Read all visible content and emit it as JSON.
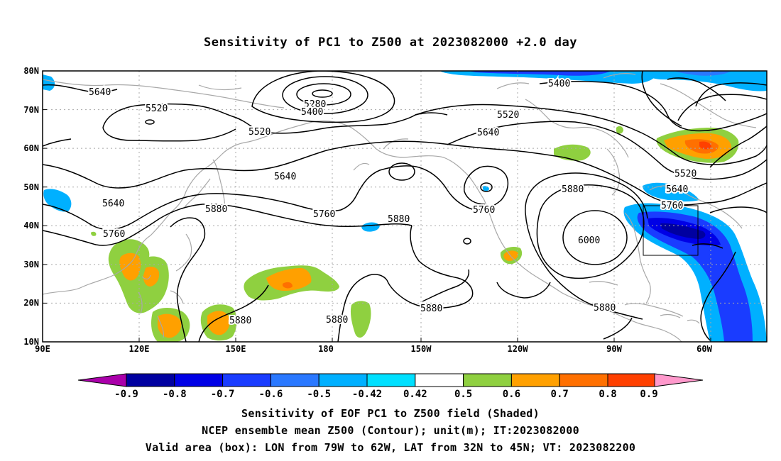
{
  "title": "Sensitivity of PC1 to Z500 at 2023082000 +2.0 day",
  "map": {
    "lat_labels": [
      "80N",
      "70N",
      "60N",
      "50N",
      "40N",
      "30N",
      "20N",
      "10N"
    ],
    "lon_labels": [
      "90E",
      "120E",
      "150E",
      "180",
      "150W",
      "120W",
      "90W",
      "60W"
    ],
    "contour_labels": [
      {
        "text": "5640"
      },
      {
        "text": "5520"
      },
      {
        "text": "5280"
      },
      {
        "text": "5400"
      },
      {
        "text": "5520"
      },
      {
        "text": "5400"
      },
      {
        "text": "5520"
      },
      {
        "text": "5640"
      },
      {
        "text": "5640"
      },
      {
        "text": "5640"
      },
      {
        "text": "5880"
      },
      {
        "text": "5760"
      },
      {
        "text": "5760"
      },
      {
        "text": "5880"
      },
      {
        "text": "5760"
      },
      {
        "text": "5880"
      },
      {
        "text": "5520"
      },
      {
        "text": "5640"
      },
      {
        "text": "5760"
      },
      {
        "text": "6000"
      },
      {
        "text": "5880"
      },
      {
        "text": "5880"
      },
      {
        "text": "5880"
      },
      {
        "text": "5880"
      }
    ],
    "valid_box": {
      "lon_from": "79W",
      "lon_to": "62W",
      "lat_from": "32N",
      "lat_to": "45N"
    }
  },
  "colorbar": {
    "colors": [
      "#aa00aa",
      "#0000a0",
      "#0000e6",
      "#1a3cff",
      "#2a78ff",
      "#00b0ff",
      "#00e0ff",
      "#ffffff",
      "#8fd040",
      "#ffa000",
      "#ff7000",
      "#ff4000",
      "#ff0000",
      "#ff99cc"
    ],
    "labels": [
      "-0.9",
      "-0.8",
      "-0.7",
      "-0.6",
      "-0.5",
      "-0.42",
      "0.42",
      "0.5",
      "0.6",
      "0.7",
      "0.8",
      "0.9"
    ]
  },
  "captions": {
    "line1": "Sensitivity of EOF PC1 to Z500 field (Shaded)",
    "line2": "NCEP ensemble mean Z500 (Contour); unit(m); IT:2023082000",
    "line3": "Valid area (box): LON from 79W to 62W, LAT from 32N to 45N; VT: 2023082200"
  }
}
